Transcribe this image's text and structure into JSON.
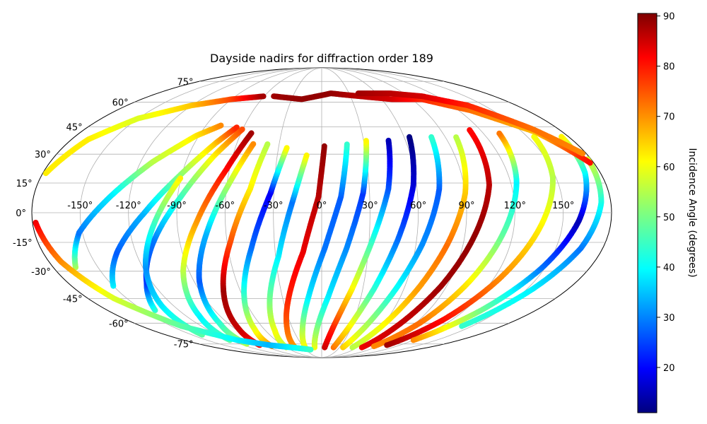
{
  "chart_data": {
    "type": "scatter",
    "projection": "mollweide",
    "title": "Dayside nadirs for diffraction order 189",
    "colorbar": {
      "label": "Incidence Angle (degrees)",
      "colormap": "jet",
      "range": [
        11,
        90.5
      ],
      "ticks": [
        "20",
        "30",
        "40",
        "50",
        "60",
        "70",
        "80",
        "90"
      ]
    },
    "lon_ticks": [
      "-150°",
      "-120°",
      "-90°",
      "-60°",
      "-30°",
      "0°",
      "30°",
      "60°",
      "90°",
      "120°",
      "150°"
    ],
    "lat_ticks": [
      "75°",
      "60°",
      "45°",
      "30°",
      "15°",
      "0°",
      "-15°",
      "-30°",
      "-45°",
      "-60°",
      "-75°"
    ],
    "grid": true,
    "tracks": [
      {
        "lon": [
          -165,
          -152,
          -130,
          -112,
          -92,
          -78
        ],
        "lat": [
          -28,
          -10,
          10,
          26,
          40,
          46
        ],
        "inc": [
          55,
          30,
          40,
          55,
          62,
          70
        ]
      },
      {
        "lon": [
          -150,
          -132,
          -110,
          -92,
          -75,
          -65
        ],
        "lat": [
          -38,
          -20,
          0,
          18,
          36,
          45
        ],
        "inc": [
          40,
          28,
          35,
          50,
          65,
          78
        ]
      },
      {
        "lon": [
          -140,
          -124,
          -106,
          -88,
          -72,
          -60
        ],
        "lat": [
          -52,
          -36,
          -14,
          8,
          30,
          44
        ],
        "inc": [
          45,
          25,
          30,
          45,
          62,
          75
        ]
      },
      {
        "lon": [
          -138,
          -130,
          -118,
          -104,
          -90
        ],
        "lat": [
          -68,
          -50,
          -28,
          -5,
          18
        ],
        "inc": [
          48,
          40,
          32,
          45,
          62
        ]
      },
      {
        "lon": [
          -120,
          -108,
          -94,
          -78,
          -62,
          -52
        ],
        "lat": [
          -72,
          -55,
          -30,
          -5,
          22,
          42
        ],
        "inc": [
          48,
          40,
          55,
          68,
          80,
          88
        ]
      },
      {
        "lon": [
          -110,
          -98,
          -86,
          -72,
          -58,
          -48
        ],
        "lat": [
          -75,
          -60,
          -35,
          -10,
          16,
          36
        ],
        "inc": [
          55,
          45,
          28,
          35,
          55,
          70
        ]
      },
      {
        "lon": [
          -95,
          -85,
          -72,
          -58,
          -45,
          -38
        ],
        "lat": [
          -76,
          -62,
          -40,
          -15,
          12,
          36
        ],
        "inc": [
          80,
          85,
          88,
          75,
          62,
          55
        ]
      },
      {
        "lon": [
          -80,
          -70,
          -58,
          -45,
          -32,
          -24
        ],
        "lat": [
          -77,
          -64,
          -42,
          -18,
          10,
          34
        ],
        "inc": [
          70,
          60,
          45,
          30,
          20,
          62
        ]
      },
      {
        "lon": [
          -60,
          -50,
          -40,
          -28,
          -18,
          -10
        ],
        "lat": [
          -78,
          -65,
          -45,
          -22,
          6,
          30
        ],
        "inc": [
          55,
          60,
          50,
          40,
          30,
          62
        ]
      },
      {
        "lon": [
          -45,
          -36,
          -25,
          -12,
          -2,
          2
        ],
        "lat": [
          -78,
          -64,
          -44,
          -20,
          8,
          35
        ],
        "inc": [
          68,
          72,
          78,
          82,
          86,
          89
        ]
      },
      {
        "lon": [
          -28,
          -20,
          -10,
          2,
          12,
          18
        ],
        "lat": [
          -78,
          -64,
          -44,
          -18,
          8,
          36
        ],
        "inc": [
          62,
          55,
          40,
          30,
          28,
          45
        ]
      },
      {
        "lon": [
          -12,
          -5,
          5,
          16,
          26,
          32
        ],
        "lat": [
          -78,
          -64,
          -44,
          -18,
          10,
          38
        ],
        "inc": [
          60,
          52,
          40,
          32,
          25,
          62
        ]
      },
      {
        "lon": [
          5,
          12,
          22,
          32,
          42,
          48
        ],
        "lat": [
          -78,
          -62,
          -40,
          -14,
          12,
          38
        ],
        "inc": [
          85,
          78,
          62,
          45,
          28,
          15
        ]
      },
      {
        "lon": [
          20,
          28,
          38,
          48,
          58,
          64
        ],
        "lat": [
          -78,
          -62,
          -40,
          -14,
          14,
          40
        ],
        "inc": [
          72,
          62,
          45,
          30,
          18,
          11
        ]
      },
      {
        "lon": [
          36,
          44,
          54,
          64,
          74,
          80
        ],
        "lat": [
          -78,
          -62,
          -40,
          -16,
          12,
          40
        ],
        "inc": [
          65,
          55,
          42,
          32,
          28,
          45
        ]
      },
      {
        "lon": [
          52,
          60,
          70,
          80,
          90,
          98
        ],
        "lat": [
          -78,
          -62,
          -40,
          -16,
          10,
          40
        ],
        "inc": [
          55,
          60,
          68,
          72,
          65,
          55
        ]
      },
      {
        "lon": [
          68,
          76,
          86,
          96,
          106,
          112
        ],
        "lat": [
          -78,
          -60,
          -38,
          -12,
          14,
          44
        ],
        "inc": [
          82,
          85,
          88,
          89,
          86,
          80
        ]
      },
      {
        "lon": [
          84,
          94,
          104,
          114,
          124,
          132
        ],
        "lat": [
          -77,
          -60,
          -36,
          -10,
          16,
          42
        ],
        "inc": [
          70,
          72,
          62,
          48,
          40,
          72
        ]
      },
      {
        "lon": [
          100,
          112,
          124,
          136,
          148,
          155
        ],
        "lat": [
          -76,
          -58,
          -34,
          -8,
          18,
          40
        ],
        "inc": [
          88,
          80,
          70,
          62,
          55,
          60
        ]
      },
      {
        "lon": [
          120,
          134,
          148,
          160,
          170,
          175
        ],
        "lat": [
          -72,
          -52,
          -28,
          -4,
          20,
          40
        ],
        "inc": [
          70,
          50,
          30,
          15,
          40,
          62
        ]
      },
      {
        "lon": [
          140,
          154,
          166,
          174,
          178
        ],
        "lat": [
          -62,
          -40,
          -18,
          5,
          28
        ],
        "inc": [
          45,
          40,
          30,
          42,
          58
        ]
      },
      {
        "lon": [
          -178,
          -172,
          -160,
          -140,
          -110,
          -80,
          -50,
          -20
        ],
        "lat": [
          -5,
          -25,
          -45,
          -62,
          -72,
          -76,
          -78,
          -80
        ],
        "inc": [
          82,
          70,
          58,
          48,
          40,
          35,
          40,
          45
        ]
      },
      {
        "lon": [
          -178,
          -168,
          -150,
          -120,
          -90,
          -60
        ],
        "lat": [
          20,
          38,
          50,
          58,
          62,
          64
        ],
        "inc": [
          62,
          62,
          58,
          65,
          75,
          88
        ]
      },
      {
        "lon": [
          -50,
          -20,
          10,
          40,
          70,
          100,
          130,
          160,
          178
        ],
        "lat": [
          64,
          62,
          66,
          64,
          62,
          62,
          55,
          42,
          25
        ],
        "inc": [
          88,
          89,
          89,
          86,
          84,
          78,
          72,
          66,
          80
        ]
      },
      {
        "lon": [
          40,
          75,
          105,
          135,
          160,
          178
        ],
        "lat": [
          66,
          66,
          64,
          58,
          44,
          30
        ],
        "inc": [
          88,
          86,
          84,
          78,
          72,
          70
        ]
      }
    ]
  }
}
